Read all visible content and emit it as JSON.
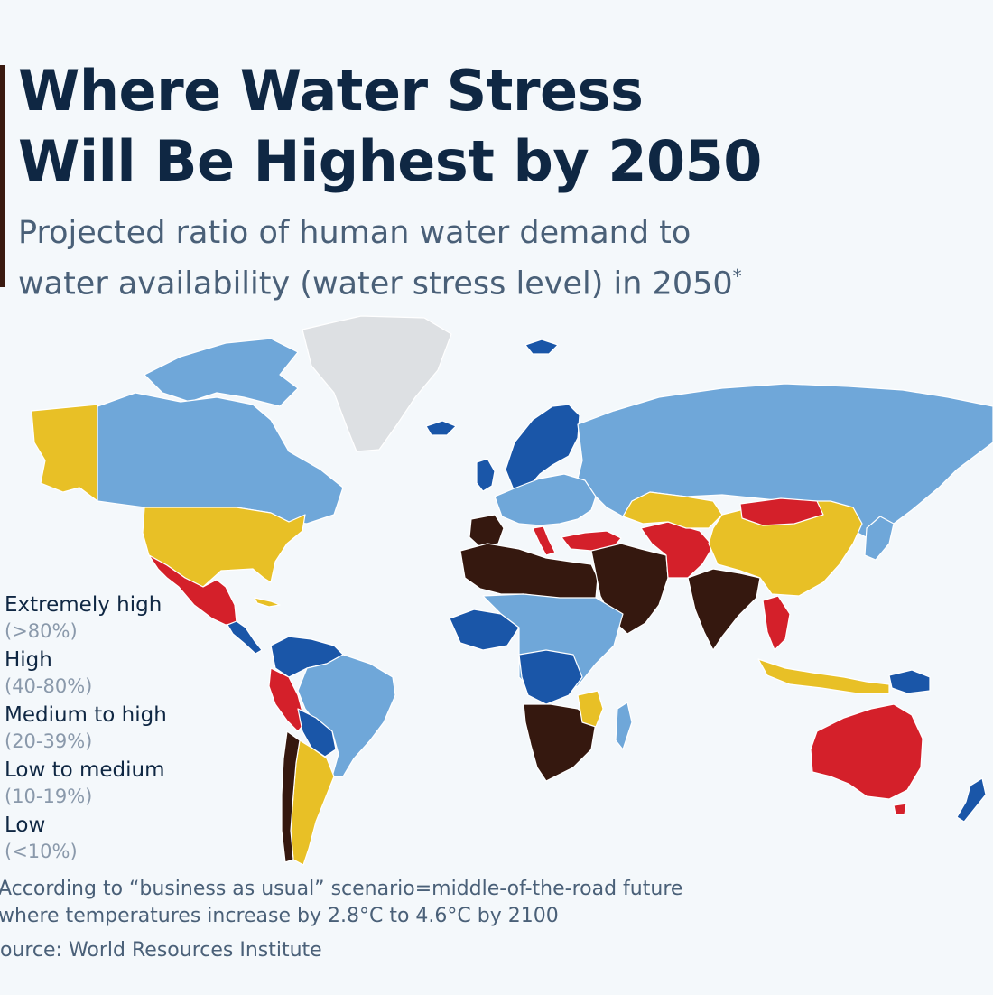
{
  "header": {
    "title_line1": "Where Water Stress",
    "title_line2": "Will Be Highest by 2050",
    "subtitle_line1": "Projected ratio of human water demand to",
    "subtitle_line2": "water availability (water stress level) in 2050",
    "subtitle_mark": "*"
  },
  "colors": {
    "extremely_high": "#35180f",
    "high": "#d4202a",
    "medium_high": "#e8c026",
    "low_medium": "#6fa7d9",
    "low": "#1a56a8",
    "no_data": "#dde0e3"
  },
  "legend": {
    "items": [
      {
        "label": "Extremely high",
        "range": "(>80%)",
        "color": "#35180f"
      },
      {
        "label": "High",
        "range": "(40-80%)",
        "color": "#d4202a"
      },
      {
        "label": "Medium to high",
        "range": "(20-39%)",
        "color": "#e8c026"
      },
      {
        "label": "Low to medium",
        "range": "(10-19%)",
        "color": "#6fa7d9"
      },
      {
        "label": "Low",
        "range": "(<10%)",
        "color": "#1a56a8"
      }
    ]
  },
  "footer": {
    "footnote_line1": "According to “business as usual” scenario=middle-of-the-road future",
    "footnote_line2": "where temperatures increase by 2.8°C to 4.6°C by 2100",
    "source": "Source: World Resources Institute"
  }
}
